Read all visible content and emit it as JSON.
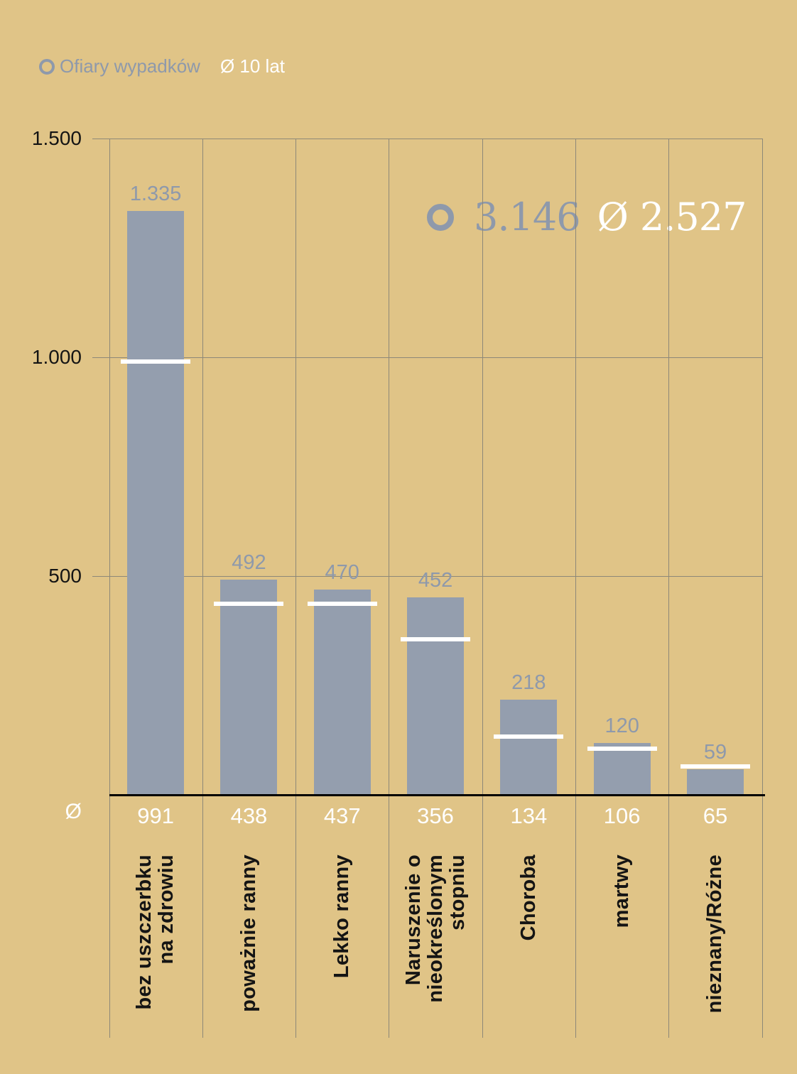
{
  "legend": {
    "series_label": "Ofiary wypadków",
    "avg_label": "Ø 10 lat"
  },
  "annotation": {
    "total_value": "3.146",
    "avg_symbol": "Ø",
    "avg_value": "2.527"
  },
  "avg_row": {
    "symbol": "Ø"
  },
  "colors": {
    "background": "#e0c487",
    "bar": "#949eae",
    "gray_blue_accent": "#8e99ab",
    "white": "#ffffff",
    "black": "#141414",
    "gridline": "#8d8878"
  },
  "chart_data": {
    "type": "bar",
    "title": "",
    "categories": [
      "bez uszczerbku na zdrowiu",
      "poważnie ranny",
      "Lekko ranny",
      "Naruszenie o nieokreślonym stopniu",
      "Choroba",
      "martwy",
      "nieznany/Różne"
    ],
    "categories_lines": [
      [
        "bez uszczerbku",
        "na zdrowiu"
      ],
      [
        "poważnie ranny"
      ],
      [
        "Lekko ranny"
      ],
      [
        "Naruszenie o",
        "nieokreślonym",
        "stopniu"
      ],
      [
        "Choroba"
      ],
      [
        "martwy"
      ],
      [
        "nieznany/Różne"
      ]
    ],
    "series": [
      {
        "name": "Ofiary wypadków",
        "values": [
          1335,
          492,
          470,
          452,
          218,
          120,
          59
        ]
      },
      {
        "name": "Ø 10 lat",
        "values": [
          991,
          438,
          437,
          356,
          134,
          106,
          65
        ]
      }
    ],
    "bar_labels": [
      "1.335",
      "492",
      "470",
      "452",
      "218",
      "120",
      "59"
    ],
    "avg_labels": [
      "991",
      "438",
      "437",
      "356",
      "134",
      "106",
      "65"
    ],
    "total": 3146,
    "overall_average": 2527,
    "y_ticks": [
      "1.500",
      "1.000",
      "500"
    ],
    "y_tick_values": [
      1500,
      1000,
      500
    ],
    "ylim": [
      0,
      1500
    ],
    "grid": true,
    "legend_position": "top-left"
  }
}
